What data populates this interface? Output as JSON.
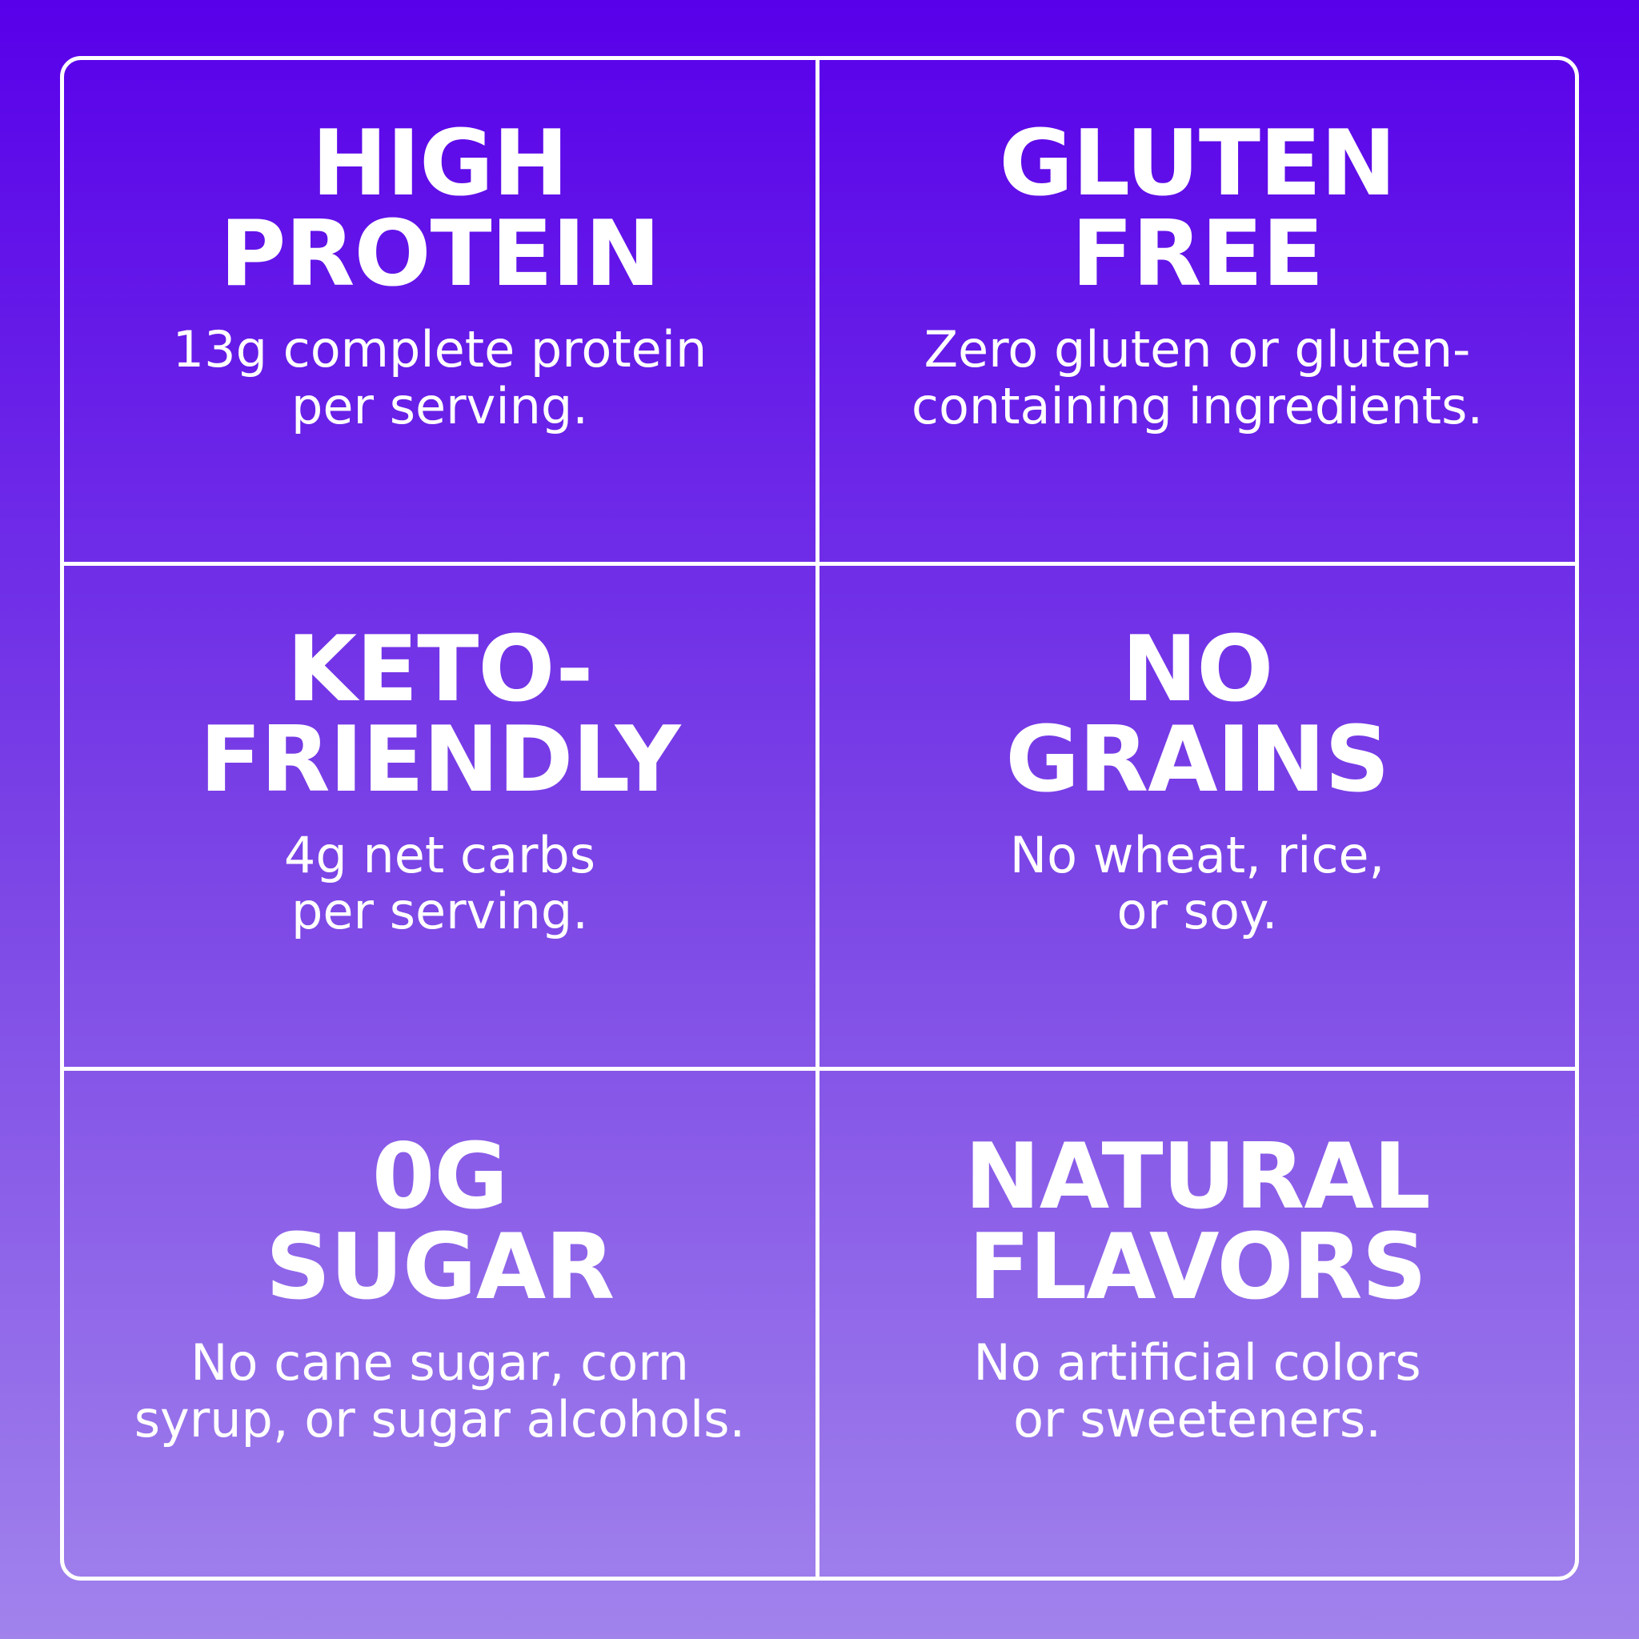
{
  "colors": {
    "gradient_top": "#5800ea",
    "gradient_bottom": "#a183ec",
    "line_color": "#ffffff",
    "text_color": "#ffffff"
  },
  "cells": [
    {
      "id": "high-protein",
      "title_line1": "HIGH",
      "title_line2": "PROTEIN",
      "desc_line1": "13g complete protein",
      "desc_line2": "per serving."
    },
    {
      "id": "gluten-free",
      "title_line1": "GLUTEN",
      "title_line2": "FREE",
      "desc_line1": "Zero gluten or gluten-",
      "desc_line2": "containing ingredients."
    },
    {
      "id": "keto-friendly",
      "title_line1": "KETO-",
      "title_line2": "FRIENDLY",
      "desc_line1": "4g net carbs",
      "desc_line2": "per serving."
    },
    {
      "id": "no-grains",
      "title_line1": "NO",
      "title_line2": "GRAINS",
      "desc_line1": "No wheat, rice,",
      "desc_line2": "or soy."
    },
    {
      "id": "zero-sugar",
      "title_line1": "0g",
      "title_line2": "SUGAR",
      "desc_line1": "No cane sugar, corn",
      "desc_line2": "syrup, or sugar alcohols."
    },
    {
      "id": "natural-flavors",
      "title_line1": "NATURAL",
      "title_line2": "FLAVORS",
      "desc_line1": "No artificial colors",
      "desc_line2": "or sweeteners."
    }
  ]
}
